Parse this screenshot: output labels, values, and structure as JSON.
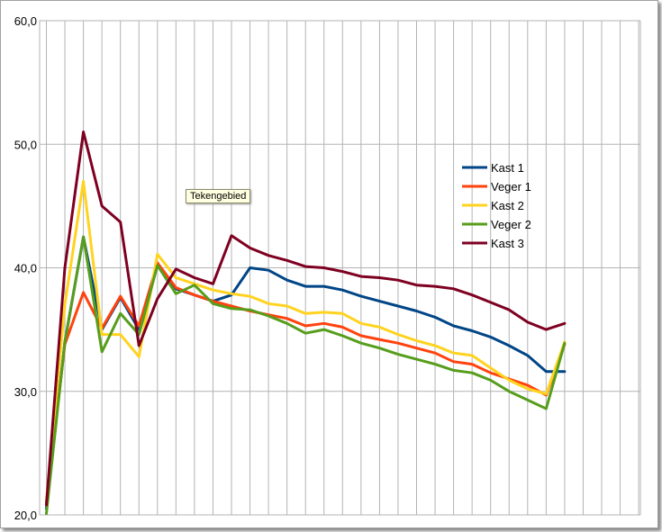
{
  "tooltip": "Tekengebied",
  "colors": {
    "grid": "#b3b3b3",
    "background": "#ffffff"
  },
  "chart_data": {
    "type": "line",
    "ylim": [
      20,
      60
    ],
    "yticks": [
      "20,0",
      "30,0",
      "40,0",
      "50,0",
      "60,0"
    ],
    "ytick_values": [
      20,
      30,
      40,
      50,
      60
    ],
    "x_count": 33,
    "grid": true,
    "legend_position": "right",
    "series": [
      {
        "name": "Kast 1",
        "color": "#004586",
        "values": [
          20.5,
          34,
          42.5,
          35,
          37.6,
          35,
          40.2,
          38.3,
          37.8,
          37.3,
          37.8,
          40,
          39.8,
          39,
          38.5,
          38.5,
          38.2,
          37.7,
          37.3,
          36.9,
          36.5,
          36,
          35.3,
          34.9,
          34.4,
          33.7,
          32.9,
          31.6,
          31.6
        ]
      },
      {
        "name": "Veger 1",
        "color": "#ff420e",
        "values": [
          21,
          33.8,
          38,
          35.1,
          37.7,
          35.3,
          40.4,
          38.4,
          37.8,
          37.3,
          36.9,
          36.5,
          36.2,
          35.9,
          35.3,
          35.5,
          35.2,
          34.5,
          34.2,
          33.9,
          33.5,
          33.1,
          32.4,
          32.2,
          31.5,
          31,
          30.5,
          29.7,
          33.8
        ]
      },
      {
        "name": "Kast 2",
        "color": "#ffd320",
        "values": [
          21.2,
          37,
          47,
          34.6,
          34.6,
          32.8,
          41.1,
          39.2,
          38.7,
          38.2,
          37.9,
          37.7,
          37.1,
          36.9,
          36.3,
          36.4,
          36.3,
          35.5,
          35.2,
          34.6,
          34.1,
          33.7,
          33.1,
          32.9,
          31.9,
          30.9,
          30.2,
          29.8,
          34
        ]
      },
      {
        "name": "Veger 2",
        "color": "#579d1c",
        "values": [
          20.1,
          34,
          42.5,
          33.2,
          36.3,
          34.6,
          40.2,
          37.9,
          38.6,
          37.1,
          36.7,
          36.6,
          36.1,
          35.5,
          34.7,
          35,
          34.5,
          33.9,
          33.5,
          33,
          32.6,
          32.2,
          31.7,
          31.5,
          30.9,
          30,
          29.3,
          28.6,
          33.9
        ]
      },
      {
        "name": "Kast 3",
        "color": "#7e0021",
        "values": [
          20.8,
          40,
          51,
          45,
          43.7,
          33.7,
          37.5,
          39.9,
          39.2,
          38.7,
          42.6,
          41.6,
          41,
          40.6,
          40.1,
          40,
          39.7,
          39.3,
          39.2,
          39,
          38.6,
          38.5,
          38.3,
          37.8,
          37.2,
          36.6,
          35.6,
          35,
          35.5
        ]
      }
    ]
  }
}
